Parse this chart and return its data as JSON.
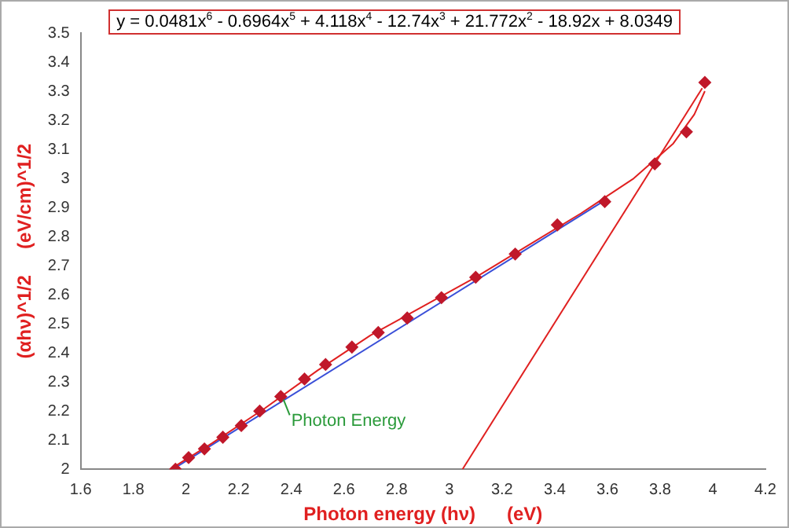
{
  "chart_data": {
    "type": "scatter",
    "title": "y = 0.0481x$^{6}$ - 0.6964x$^{5}$ + 4.118x$^{4}$ - 12.74x$^{3}$ + 21.772x$^{2}$ - 18.92x + 8.0349",
    "xlabel": "Photon energy (hν)      (eV)",
    "ylabel": "(αhν)^1/2     (eV/cm)^1/2",
    "xlim": [
      1.6,
      4.2
    ],
    "xticks": [
      1.6,
      1.8,
      2,
      2.2,
      2.4,
      2.6,
      2.8,
      3,
      3.2,
      3.4,
      3.6,
      3.8,
      4,
      4.2
    ],
    "ylim": [
      2,
      3.5
    ],
    "yticks": [
      2,
      2.1,
      2.2,
      2.3,
      2.4,
      2.5,
      2.6,
      2.7,
      2.8,
      2.9,
      3,
      3.1,
      3.2,
      3.3,
      3.4,
      3.5
    ],
    "grid": false,
    "legend": false,
    "series": [
      {
        "color": "#c0182a",
        "marker": "diamond",
        "x": [
          1.96,
          2.01,
          2.07,
          2.14,
          2.21,
          2.28,
          2.36,
          2.45,
          2.53,
          2.63,
          2.73,
          2.84,
          2.97,
          3.1,
          3.25,
          3.41,
          3.59,
          3.78,
          3.9,
          3.97
        ],
        "values": [
          2.0,
          2.04,
          2.07,
          2.11,
          2.15,
          2.2,
          2.25,
          2.31,
          2.36,
          2.42,
          2.47,
          2.52,
          2.59,
          2.66,
          2.74,
          2.84,
          2.92,
          3.05,
          3.16,
          3.33
        ]
      },
      {
        "type": "line",
        "color": "#e02020",
        "marker": "none",
        "line_style": "solid",
        "x": [
          1.94,
          2.1,
          2.3,
          2.5,
          2.7,
          2.9,
          3.1,
          3.3,
          3.5,
          3.7,
          3.85,
          3.93,
          3.97
        ],
        "values": [
          2.0,
          2.09,
          2.21,
          2.34,
          2.46,
          2.56,
          2.66,
          2.77,
          2.88,
          3.0,
          3.12,
          3.22,
          3.3
        ]
      },
      {
        "type": "line",
        "color": "#e02020",
        "marker": "none",
        "line_style": "solid",
        "x": [
          3.05,
          3.96
        ],
        "values": [
          2.0,
          3.31
        ]
      },
      {
        "type": "line",
        "color": "#3a4fd8",
        "marker": "none",
        "line_style": "solid",
        "x": [
          1.95,
          3.6
        ],
        "values": [
          2.0,
          2.93
        ]
      }
    ],
    "annotations": [
      {
        "text": "Photon Energy",
        "x": 2.37,
        "y": 2.24
      }
    ]
  }
}
